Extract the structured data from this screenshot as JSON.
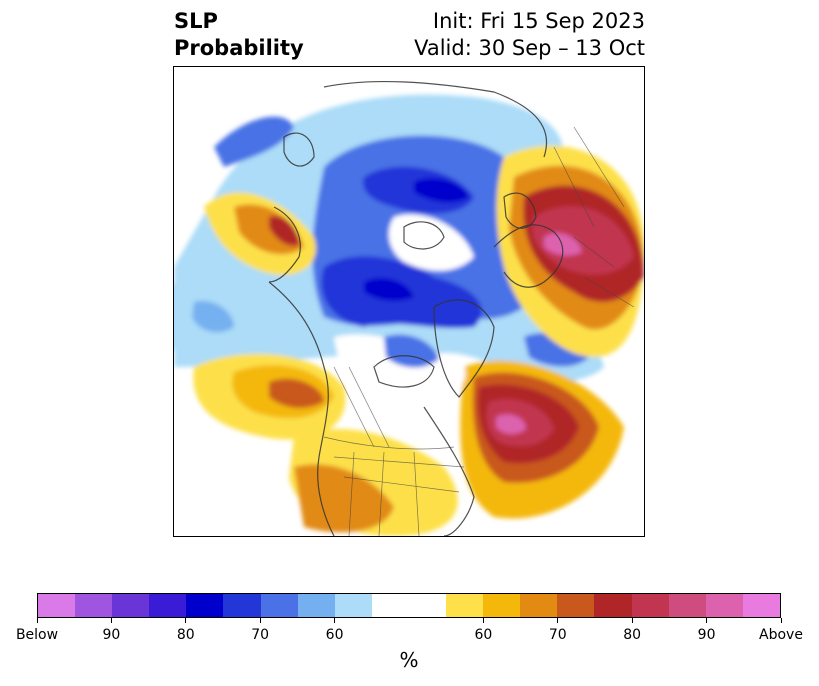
{
  "title": {
    "left_line1": "SLP",
    "left_line2": "Probability",
    "right_line1": "Init: Fri 15 Sep 2023",
    "right_line2": "Valid: 30 Sep – 13 Oct"
  },
  "colorbar": {
    "colors": [
      "#d97ae8",
      "#9f55e0",
      "#6a35d6",
      "#3a1bd6",
      "#0000cc",
      "#2336d8",
      "#4a72e6",
      "#74b0f0",
      "#acdcf8",
      "#ffffff",
      "#ffffff",
      "#fde04a",
      "#f4b80a",
      "#e28a12",
      "#c9581c",
      "#b02528",
      "#c23550",
      "#cf4d7e",
      "#dd62ae",
      "#e87ae0"
    ],
    "labels": [
      "Below",
      "90",
      "80",
      "70",
      "60",
      "60",
      "70",
      "80",
      "90",
      "Above"
    ],
    "units": "%"
  },
  "map": {
    "projection": "north-polar-stereographic",
    "layers": "below and above normal sea level pressure probability shading"
  }
}
